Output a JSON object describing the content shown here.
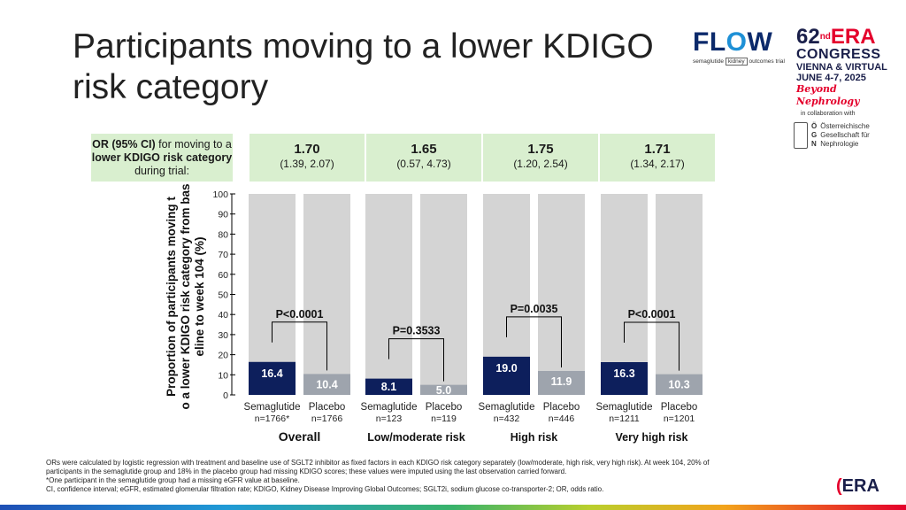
{
  "title": "Participants moving to a lower KDIGO risk category",
  "logos": {
    "flow": {
      "word_a": "FL",
      "word_o": "O",
      "word_b": "W",
      "sub_drug": "semaglutide",
      "sub_box": "kidney",
      "sub_rest": "outcomes trial"
    },
    "era": {
      "number": "62",
      "superscript": "nd",
      "name": "ERA",
      "congress": "CONGRESS",
      "location": "VIENNA & VIRTUAL",
      "date": "JUNE 4-7, 2025",
      "tagline": "Beyond Nephrology",
      "collab": "in collaboration with",
      "ogn_letters": "Ö\nG\nN",
      "ogn_text": "Österreichische\nGesellschaft für\nNephrologie"
    },
    "corner": {
      "prefix": "",
      "name": "ERA"
    }
  },
  "or_box": {
    "text_1": "OR (95% CI)",
    "text_2": " for moving to a ",
    "text_3": "lower KDIGO risk category",
    "text_4": " during trial:"
  },
  "odds_ratios": [
    {
      "value": "1.70",
      "ci": "(1.39, 2.07)"
    },
    {
      "value": "1.65",
      "ci": "(0.57, 4.73)"
    },
    {
      "value": "1.75",
      "ci": "(1.20, 2.54)"
    },
    {
      "value": "1.71",
      "ci": "(1.34, 2.17)"
    }
  ],
  "colors": {
    "semaglutide": "#0d1f5c",
    "placebo": "#9ea4ad",
    "background_bar": "#d4d4d4",
    "or_box": "#d9efcf"
  },
  "chart_data": {
    "type": "bar",
    "ylabel": "Proportion of participants  moving to a lower KDIGO risk category from baseline to week 104 (%)",
    "ylim": [
      0,
      100
    ],
    "yticks": [
      0,
      10,
      20,
      30,
      40,
      50,
      60,
      70,
      80,
      90,
      100
    ],
    "groups": [
      {
        "name": "Overall",
        "p_value": "P<0.0001",
        "bars": [
          {
            "arm": "Semaglutide",
            "n": "n=1766*",
            "value": 16.4,
            "label": "16.4"
          },
          {
            "arm": "Placebo",
            "n": "n=1766",
            "value": 10.4,
            "label": "10.4"
          }
        ]
      },
      {
        "name": "Low/moderate risk",
        "p_value": "P=0.3533",
        "bars": [
          {
            "arm": "Semaglutide",
            "n": "n=123",
            "value": 8.1,
            "label": "8.1"
          },
          {
            "arm": "Placebo",
            "n": "n=119",
            "value": 5.0,
            "label": "5.0"
          }
        ]
      },
      {
        "name": "High risk",
        "p_value": "P=0.0035",
        "bars": [
          {
            "arm": "Semaglutide",
            "n": "n=432",
            "value": 19.0,
            "label": "19.0"
          },
          {
            "arm": "Placebo",
            "n": "n=446",
            "value": 11.9,
            "label": "11.9"
          }
        ]
      },
      {
        "name": "Very high risk",
        "p_value": "P<0.0001",
        "bars": [
          {
            "arm": "Semaglutide",
            "n": "n=1211",
            "value": 16.3,
            "label": "16.3"
          },
          {
            "arm": "Placebo",
            "n": "n=1201",
            "value": 10.3,
            "label": "10.3"
          }
        ]
      }
    ]
  },
  "footnote": {
    "line1": "ORs were calculated by logistic regression with treatment and baseline use of SGLT2 inhibitor as fixed factors in each KDIGO risk category separately (low/moderate, high risk, very high risk). At week 104, 20% of",
    "line2": "participants in the semaglutide group and 18% in the placebo group had missing KDIGO scores; these values were imputed using the last observation carried forward.",
    "line3": "*One participant in the semaglutide group had a missing eGFR value at baseline.",
    "line4": "CI, confidence interval; eGFR, estimated glomerular filtration rate; KDIGO, Kidney Disease Improving Global Outcomes; SGLT2i, sodium glucose co-transporter-2; OR, odds ratio."
  }
}
